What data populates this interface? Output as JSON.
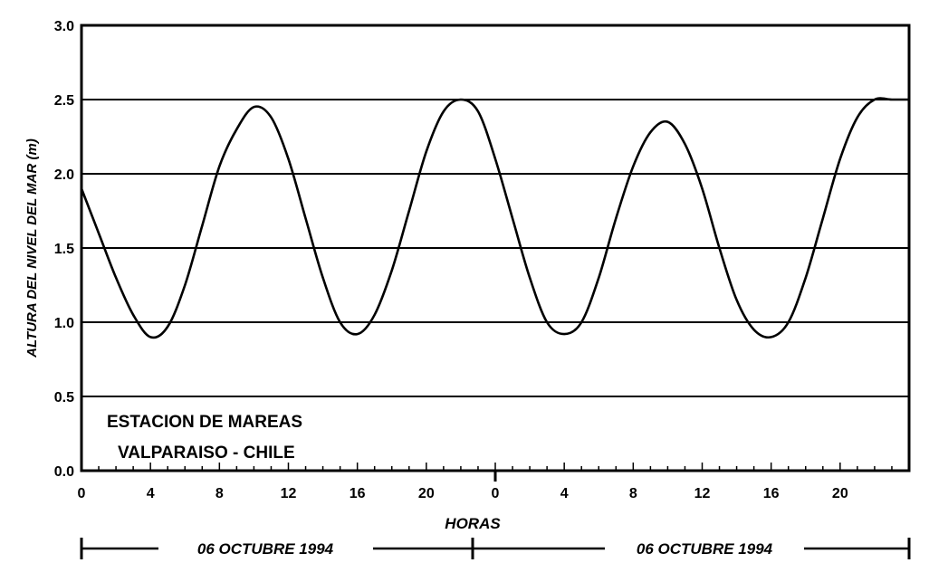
{
  "chart_data": {
    "type": "line",
    "title": "",
    "xlabel": "HORAS",
    "ylabel": "ALTURA DEL NIVEL DEL MAR (m)",
    "ylim": [
      0,
      3.0
    ],
    "y_ticks": [
      "0.0",
      "0.5",
      "1.0",
      "1.5",
      "2.0",
      "2.5",
      "3.0"
    ],
    "x_ticks": [
      "0",
      "4",
      "8",
      "12",
      "16",
      "20",
      "0",
      "4",
      "8",
      "12",
      "16",
      "20"
    ],
    "grid": "horizontal",
    "annotation_lines": [
      "ESTACION DE MAREAS",
      "VALPARAISO - CHILE"
    ],
    "date_labels": [
      "06 OCTUBRE 1994",
      "06 OCTUBRE 1994"
    ],
    "series": [
      {
        "x": [
          0,
          1,
          2,
          3,
          4,
          5,
          6,
          7,
          8,
          9,
          10,
          11,
          12,
          13,
          14,
          15,
          16,
          17,
          18,
          19,
          20,
          21,
          22,
          23,
          24,
          25,
          26,
          27,
          28,
          29,
          30,
          31,
          32,
          33,
          34,
          35,
          36,
          37,
          38,
          39,
          40,
          41,
          42,
          43,
          44,
          45,
          46,
          47,
          48
        ],
        "y": [
          1.9,
          1.6,
          1.3,
          1.05,
          0.9,
          0.97,
          1.25,
          1.65,
          2.05,
          2.3,
          2.45,
          2.38,
          2.1,
          1.7,
          1.3,
          1.0,
          0.92,
          1.05,
          1.35,
          1.75,
          2.15,
          2.42,
          2.5,
          2.42,
          2.1,
          1.7,
          1.3,
          1.0,
          0.92,
          1.0,
          1.3,
          1.7,
          2.05,
          2.28,
          2.35,
          2.2,
          1.9,
          1.5,
          1.15,
          0.95,
          0.9,
          1.0,
          1.3,
          1.7,
          2.1,
          2.38,
          2.5,
          2.5,
          2.5
        ]
      }
    ]
  }
}
